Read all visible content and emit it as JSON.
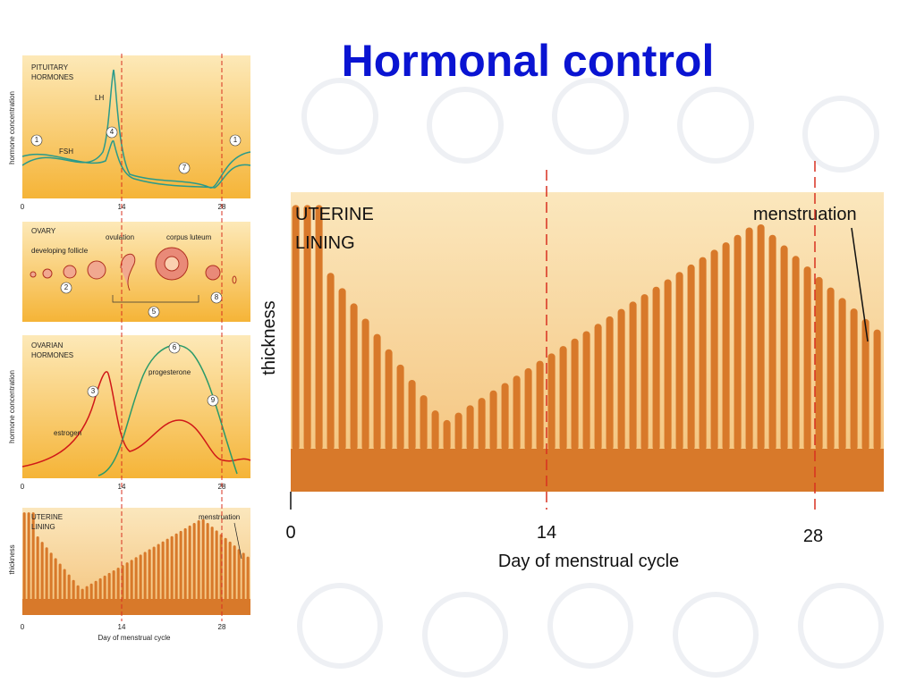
{
  "title": "Hormonal control",
  "pituitary": {
    "label": [
      "PITUITARY",
      "HORMONES"
    ],
    "ylabel": "hormone concentration",
    "lh": "LH",
    "fsh": "FSH",
    "markers": [
      "1",
      "4",
      "1",
      "7"
    ],
    "days": [
      "0",
      "14",
      "28"
    ]
  },
  "ovary": {
    "label": "OVARY",
    "developing": "developing follicle",
    "ovulation": "ovulation",
    "corpus": "corpus luteum",
    "markers": [
      "2",
      "5",
      "8"
    ]
  },
  "ovarian": {
    "label": [
      "OVARIAN",
      "HORMONES"
    ],
    "ylabel": "hormone concentration",
    "progesterone": "progesterone",
    "estrogen": "estrogen",
    "markers": [
      "3",
      "6",
      "9"
    ],
    "days": [
      "0",
      "14",
      "28"
    ]
  },
  "lining_small": {
    "label": [
      "UTERINE",
      "LINING"
    ],
    "ylabel": "thickness",
    "menstruation": "menstruation",
    "days": [
      "0",
      "14",
      "28"
    ],
    "xlabel": "Day of menstrual cycle"
  },
  "lining_large": {
    "label": [
      "UTERINE",
      "LINING"
    ],
    "ylabel": "thickness",
    "menstruation": "menstruation",
    "days": [
      "0",
      "14",
      "28"
    ],
    "xlabel": "Day of menstrual cycle"
  }
}
